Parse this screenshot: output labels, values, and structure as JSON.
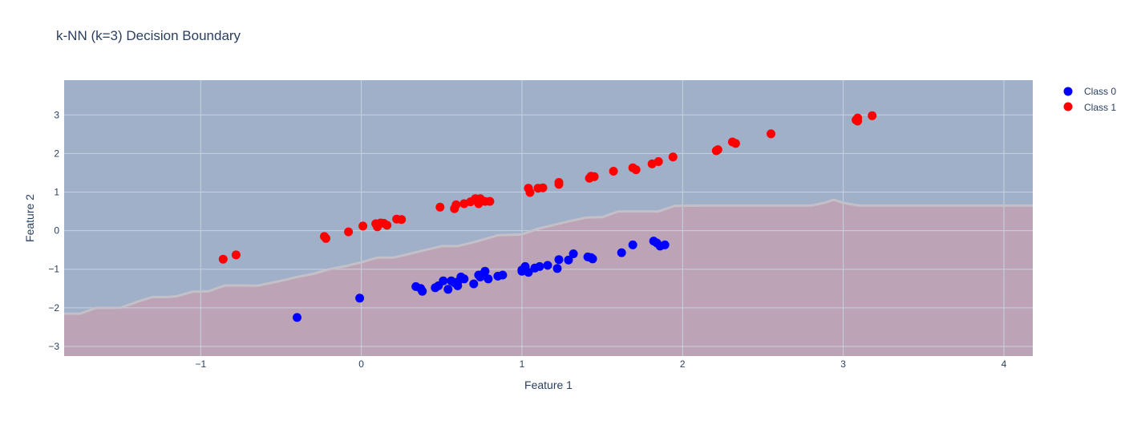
{
  "chart_data": {
    "type": "scatter",
    "title": "k-NN (k=3) Decision Boundary",
    "xlabel": "Feature 1",
    "ylabel": "Feature 2",
    "xlim": [
      -1.85,
      4.18
    ],
    "ylim": [
      -3.25,
      3.9
    ],
    "xticks": [
      -1,
      0,
      1,
      2,
      3,
      4
    ],
    "xtick_labels": [
      "−1",
      "0",
      "1",
      "2",
      "3",
      "4"
    ],
    "yticks": [
      -3,
      -2,
      -1,
      0,
      1,
      2,
      3
    ],
    "ytick_labels": [
      "−3",
      "−2",
      "−1",
      "0",
      "1",
      "2",
      "3"
    ],
    "grid": true,
    "legend_position": "top-right",
    "colors": {
      "class0": "#0000ff",
      "class1": "#ff0000",
      "region0": "#9fb0c8",
      "region1": "#bca4b6",
      "boundary": "#c3c0c8",
      "grid": "#c8d2de"
    },
    "decision_boundary": {
      "x": [
        -1.85,
        -1.75,
        -1.65,
        -1.5,
        -1.4,
        -1.3,
        -1.2,
        -1.15,
        -1.05,
        -0.95,
        -0.85,
        -0.75,
        -0.65,
        -0.5,
        -0.4,
        -0.3,
        -0.2,
        -0.1,
        0.0,
        0.1,
        0.2,
        0.3,
        0.4,
        0.5,
        0.6,
        0.7,
        0.85,
        1.0,
        1.1,
        1.2,
        1.3,
        1.4,
        1.5,
        1.6,
        1.7,
        1.85,
        1.95,
        2.1,
        2.3,
        2.5,
        2.7,
        2.8,
        2.88,
        2.94,
        3.0,
        3.1,
        3.2,
        3.5,
        3.8,
        4.18
      ],
      "y": [
        -2.15,
        -2.15,
        -2.0,
        -2.0,
        -1.85,
        -1.72,
        -1.72,
        -1.7,
        -1.58,
        -1.57,
        -1.42,
        -1.42,
        -1.43,
        -1.3,
        -1.2,
        -1.12,
        -1.0,
        -0.92,
        -0.82,
        -0.7,
        -0.7,
        -0.6,
        -0.5,
        -0.4,
        -0.4,
        -0.3,
        -0.12,
        -0.1,
        0.05,
        0.15,
        0.25,
        0.34,
        0.35,
        0.5,
        0.5,
        0.5,
        0.64,
        0.65,
        0.65,
        0.65,
        0.65,
        0.65,
        0.72,
        0.8,
        0.72,
        0.65,
        0.65,
        0.65,
        0.65,
        0.65
      ]
    },
    "series": [
      {
        "name": "Class 0",
        "points": [
          [
            -0.4,
            -2.25
          ],
          [
            -0.01,
            -1.75
          ],
          [
            0.34,
            -1.45
          ],
          [
            0.37,
            -1.5
          ],
          [
            0.38,
            -1.57
          ],
          [
            0.46,
            -1.48
          ],
          [
            0.48,
            -1.43
          ],
          [
            0.51,
            -1.3
          ],
          [
            0.54,
            -1.52
          ],
          [
            0.56,
            -1.3
          ],
          [
            0.58,
            -1.35
          ],
          [
            0.6,
            -1.43
          ],
          [
            0.6,
            -1.33
          ],
          [
            0.62,
            -1.2
          ],
          [
            0.64,
            -1.25
          ],
          [
            0.7,
            -1.38
          ],
          [
            0.73,
            -1.15
          ],
          [
            0.74,
            -1.2
          ],
          [
            0.76,
            -1.12
          ],
          [
            0.77,
            -1.05
          ],
          [
            0.79,
            -1.25
          ],
          [
            0.85,
            -1.18
          ],
          [
            0.88,
            -1.15
          ],
          [
            1.0,
            -1.02
          ],
          [
            1.0,
            -1.05
          ],
          [
            1.02,
            -0.93
          ],
          [
            1.04,
            -1.08
          ],
          [
            1.08,
            -0.97
          ],
          [
            1.11,
            -0.93
          ],
          [
            1.16,
            -0.9
          ],
          [
            1.22,
            -0.98
          ],
          [
            1.23,
            -0.75
          ],
          [
            1.29,
            -0.76
          ],
          [
            1.32,
            -0.6
          ],
          [
            1.41,
            -0.68
          ],
          [
            1.43,
            -0.7
          ],
          [
            1.44,
            -0.73
          ],
          [
            1.62,
            -0.57
          ],
          [
            1.69,
            -0.37
          ],
          [
            1.82,
            -0.27
          ],
          [
            1.84,
            -0.32
          ],
          [
            1.86,
            -0.4
          ],
          [
            1.89,
            -0.37
          ]
        ]
      },
      {
        "name": "Class 1",
        "points": [
          [
            -0.86,
            -0.74
          ],
          [
            -0.78,
            -0.63
          ],
          [
            -0.23,
            -0.15
          ],
          [
            -0.22,
            -0.2
          ],
          [
            -0.08,
            -0.03
          ],
          [
            0.01,
            0.12
          ],
          [
            0.09,
            0.18
          ],
          [
            0.1,
            0.1
          ],
          [
            0.12,
            0.2
          ],
          [
            0.14,
            0.19
          ],
          [
            0.16,
            0.14
          ],
          [
            0.22,
            0.3
          ],
          [
            0.25,
            0.29
          ],
          [
            0.49,
            0.61
          ],
          [
            0.58,
            0.57
          ],
          [
            0.59,
            0.67
          ],
          [
            0.64,
            0.7
          ],
          [
            0.68,
            0.75
          ],
          [
            0.71,
            0.83
          ],
          [
            0.73,
            0.7
          ],
          [
            0.74,
            0.83
          ],
          [
            0.77,
            0.76
          ],
          [
            0.8,
            0.76
          ],
          [
            1.04,
            1.1
          ],
          [
            1.05,
            0.99
          ],
          [
            1.1,
            1.1
          ],
          [
            1.13,
            1.11
          ],
          [
            1.23,
            1.2
          ],
          [
            1.23,
            1.25
          ],
          [
            1.42,
            1.36
          ],
          [
            1.43,
            1.41
          ],
          [
            1.45,
            1.4
          ],
          [
            1.57,
            1.54
          ],
          [
            1.69,
            1.63
          ],
          [
            1.71,
            1.58
          ],
          [
            1.81,
            1.73
          ],
          [
            1.85,
            1.79
          ],
          [
            1.94,
            1.91
          ],
          [
            2.21,
            2.07
          ],
          [
            2.22,
            2.1
          ],
          [
            2.31,
            2.3
          ],
          [
            2.33,
            2.26
          ],
          [
            2.55,
            2.51
          ],
          [
            3.08,
            2.87
          ],
          [
            3.09,
            2.92
          ],
          [
            3.09,
            2.84
          ],
          [
            3.18,
            2.98
          ]
        ]
      }
    ]
  }
}
